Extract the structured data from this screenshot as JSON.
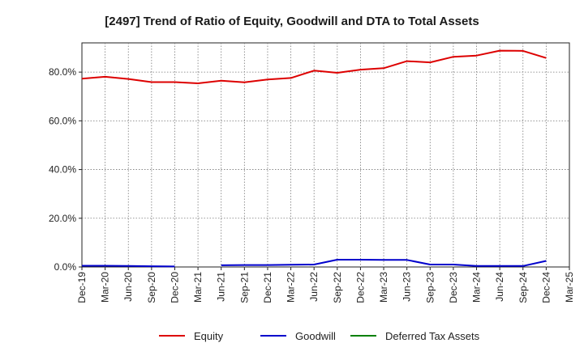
{
  "title": "[2497]  Trend of Ratio of Equity, Goodwill and DTA to Total Assets",
  "chart_data": {
    "type": "line",
    "title": "[2497]  Trend of Ratio of Equity, Goodwill and DTA to Total Assets",
    "xlabel": "",
    "ylabel": "",
    "ylim": [
      0,
      92
    ],
    "grid": true,
    "legend_position": "bottom",
    "categories": [
      "Dec-19",
      "Mar-20",
      "Jun-20",
      "Sep-20",
      "Dec-20",
      "Mar-21",
      "Jun-21",
      "Sep-21",
      "Dec-21",
      "Mar-22",
      "Jun-22",
      "Sep-22",
      "Dec-22",
      "Mar-23",
      "Jun-23",
      "Sep-23",
      "Dec-23",
      "Mar-24",
      "Jun-24",
      "Sep-24",
      "Dec-24",
      "Mar-25"
    ],
    "y_ticks": [
      0,
      20,
      40,
      60,
      80
    ],
    "y_tick_labels": [
      "0.0%",
      "20.0%",
      "40.0%",
      "60.0%",
      "80.0%"
    ],
    "series": [
      {
        "name": "Equity",
        "color": "#dd0000",
        "values": [
          77.3,
          78.1,
          77.2,
          75.9,
          75.9,
          75.4,
          76.5,
          75.8,
          77.0,
          77.6,
          80.6,
          79.7,
          81.0,
          81.6,
          84.5,
          84.0,
          86.3,
          86.8,
          88.8,
          88.7,
          85.8,
          null
        ]
      },
      {
        "name": "Goodwill",
        "color": "#0000cc",
        "values": [
          0.5,
          0.5,
          0.4,
          0.3,
          0.2,
          null,
          0.7,
          0.8,
          0.8,
          0.9,
          1.0,
          3.0,
          3.0,
          2.9,
          2.9,
          1.0,
          1.0,
          0.4,
          0.4,
          0.4,
          2.5,
          null
        ]
      },
      {
        "name": "Deferred Tax Assets",
        "color": "#008000",
        "values": [
          null,
          null,
          null,
          null,
          null,
          null,
          null,
          null,
          null,
          null,
          null,
          null,
          null,
          null,
          null,
          null,
          null,
          null,
          null,
          null,
          null,
          null
        ]
      }
    ]
  }
}
